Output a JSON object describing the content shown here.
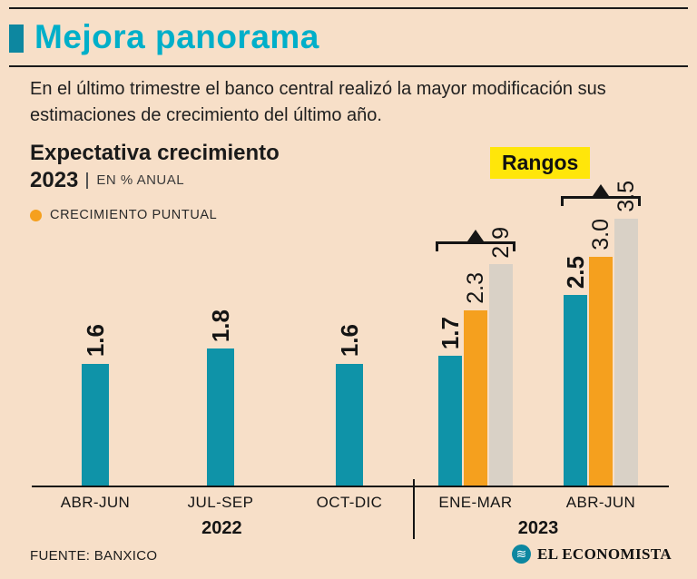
{
  "header": {
    "title": "Mejora panorama",
    "subtitle": "En el último trimestre el banco central realizó la mayor modificación sus estimaciones de crecimiento del último año."
  },
  "chart_header": {
    "title_line1": "Expectativa crecimiento",
    "title_year": "2023",
    "title_unit": "EN % ANUAL",
    "legend_label": "CRECIMIENTO PUNTUAL",
    "ranges_badge": "Rangos"
  },
  "footer": {
    "source": "FUENTE: BANXICO",
    "brand": "EL ECONOMISTA"
  },
  "colors": {
    "background": "#f7dfc8",
    "title_teal": "#00afc9",
    "teal_bar": "#0f93a8",
    "orange_bar": "#f5a01e",
    "gray_bar": "#d9d1c6",
    "badge_yellow": "#ffe60a",
    "text": "#1a1a1a"
  },
  "chart_data": {
    "type": "bar",
    "title": "Expectativa crecimiento 2023",
    "unit": "EN % ANUAL",
    "ylim": [
      0,
      3.9
    ],
    "grid": false,
    "legend": [
      "CRECIMIENTO PUNTUAL"
    ],
    "categories": [
      "ABR-JUN",
      "JUL-SEP",
      "OCT-DIC",
      "ENE-MAR",
      "ABR-JUN"
    ],
    "series": [
      {
        "name": "expectativa / rango bajo (teal)",
        "values": [
          1.6,
          1.8,
          1.6,
          1.7,
          2.5
        ]
      },
      {
        "name": "crecimiento puntual (orange)",
        "values": [
          null,
          null,
          null,
          2.3,
          3.0
        ]
      },
      {
        "name": "rango alto (gray)",
        "values": [
          null,
          null,
          null,
          2.9,
          3.5
        ]
      }
    ],
    "year_groups": [
      {
        "label": "2022",
        "categories": [
          "ABR-JUN",
          "JUL-SEP",
          "OCT-DIC"
        ]
      },
      {
        "label": "2023",
        "categories": [
          "ENE-MAR",
          "ABR-JUN"
        ]
      }
    ],
    "groups": [
      {
        "category": "ABR-JUN",
        "year": "2022",
        "range": false,
        "bars": [
          {
            "value": 1.6,
            "series": "expectativa",
            "color": "teal"
          }
        ]
      },
      {
        "category": "JUL-SEP",
        "year": "2022",
        "range": false,
        "bars": [
          {
            "value": 1.8,
            "series": "expectativa",
            "color": "teal"
          }
        ]
      },
      {
        "category": "OCT-DIC",
        "year": "2022",
        "range": false,
        "bars": [
          {
            "value": 1.6,
            "series": "expectativa",
            "color": "teal"
          }
        ]
      },
      {
        "category": "ENE-MAR",
        "year": "2023",
        "range": true,
        "bars": [
          {
            "value": 1.7,
            "series": "rango-bajo",
            "color": "teal"
          },
          {
            "value": 2.3,
            "series": "crecimiento-puntual",
            "color": "orange"
          },
          {
            "value": 2.9,
            "series": "rango-alto",
            "color": "gray"
          }
        ]
      },
      {
        "category": "ABR-JUN",
        "year": "2023",
        "range": true,
        "bars": [
          {
            "value": 2.5,
            "series": "rango-bajo",
            "color": "teal"
          },
          {
            "value": 3.0,
            "series": "crecimiento-puntual",
            "color": "orange"
          },
          {
            "value": 3.5,
            "series": "rango-alto",
            "color": "gray"
          }
        ]
      }
    ]
  }
}
